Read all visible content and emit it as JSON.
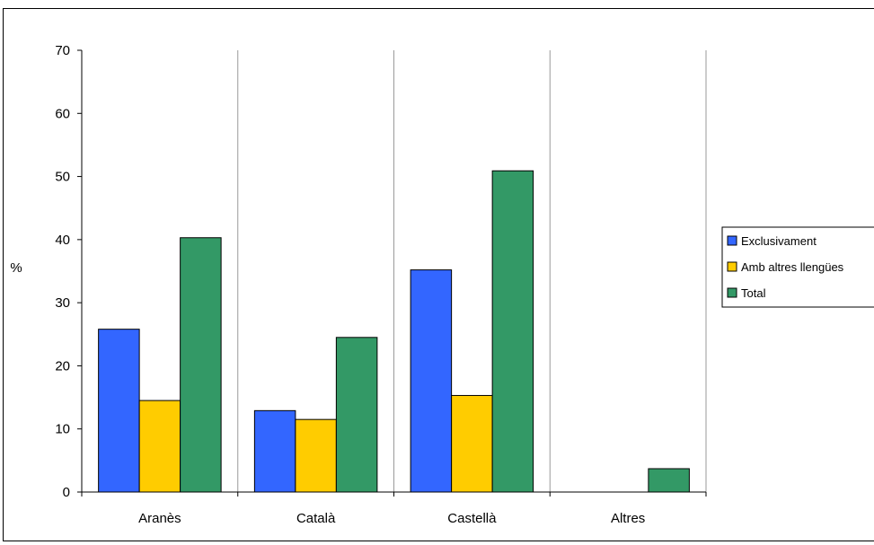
{
  "chart_data": {
    "type": "bar",
    "title": "",
    "xlabel": "",
    "ylabel": "%",
    "ylim": [
      0,
      70
    ],
    "yticks": [
      0,
      10,
      20,
      30,
      40,
      50,
      60,
      70
    ],
    "grid": "vertical-only",
    "legend_position": "right",
    "categories": [
      "Aranès",
      "Català",
      "Castellà",
      "Altres"
    ],
    "series": [
      {
        "name": "Exclusivament",
        "color": "#3366FF",
        "values": [
          25.8,
          12.9,
          35.2,
          0
        ]
      },
      {
        "name": "Amb altres llengües",
        "color": "#FFCC00",
        "values": [
          14.5,
          11.5,
          15.3,
          0
        ]
      },
      {
        "name": "Total",
        "color": "#339966",
        "values": [
          40.3,
          24.5,
          50.9,
          3.7
        ]
      }
    ]
  }
}
